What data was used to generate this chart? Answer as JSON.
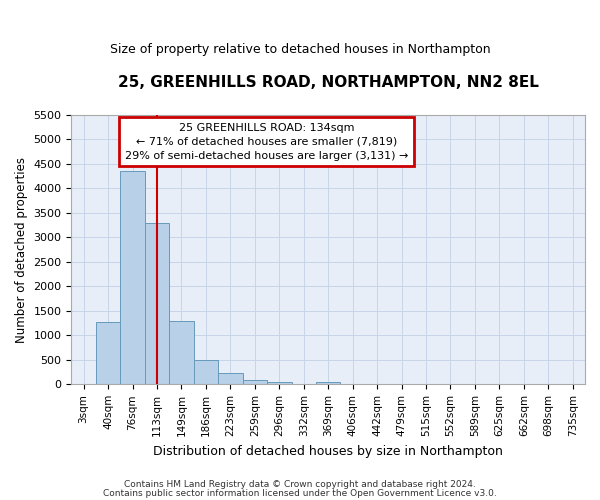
{
  "title": "25, GREENHILLS ROAD, NORTHAMPTON, NN2 8EL",
  "subtitle": "Size of property relative to detached houses in Northampton",
  "xlabel": "Distribution of detached houses by size in Northampton",
  "ylabel": "Number of detached properties",
  "footnote1": "Contains HM Land Registry data © Crown copyright and database right 2024.",
  "footnote2": "Contains public sector information licensed under the Open Government Licence v3.0.",
  "bar_color": "#b8d0e8",
  "bar_edge_color": "#6699bb",
  "grid_color": "#c8d4e8",
  "bg_color": "#e8eef8",
  "annotation_box_color": "#cc0000",
  "vline_color": "#cc0000",
  "categories": [
    "3sqm",
    "40sqm",
    "76sqm",
    "113sqm",
    "149sqm",
    "186sqm",
    "223sqm",
    "259sqm",
    "296sqm",
    "332sqm",
    "369sqm",
    "406sqm",
    "442sqm",
    "479sqm",
    "515sqm",
    "552sqm",
    "589sqm",
    "625sqm",
    "662sqm",
    "698sqm",
    "735sqm"
  ],
  "values": [
    0,
    1280,
    4350,
    3300,
    1300,
    490,
    230,
    90,
    55,
    0,
    50,
    0,
    0,
    0,
    0,
    0,
    0,
    0,
    0,
    0,
    0
  ],
  "ylim": [
    0,
    5500
  ],
  "yticks": [
    0,
    500,
    1000,
    1500,
    2000,
    2500,
    3000,
    3500,
    4000,
    4500,
    5000,
    5500
  ],
  "property_label": "25 GREENHILLS ROAD: 134sqm",
  "annotation_line1": "← 71% of detached houses are smaller (7,819)",
  "annotation_line2": "29% of semi-detached houses are larger (3,131) →",
  "vline_x_index": 3.0
}
